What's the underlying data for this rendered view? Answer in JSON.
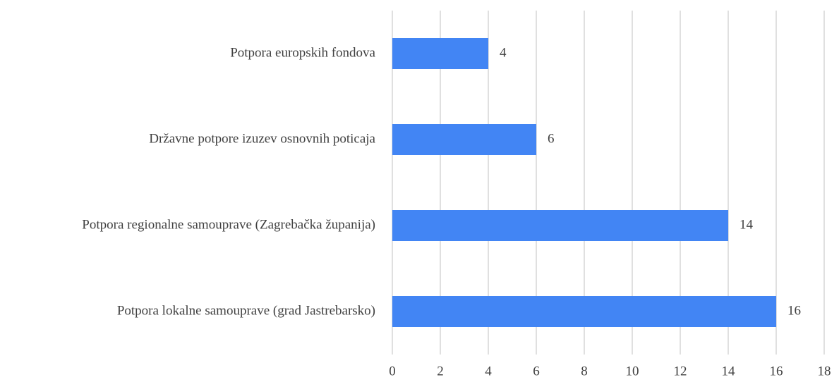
{
  "chart_data": {
    "type": "barh",
    "categories": [
      "Potpora europskih fondova",
      "Državne potpore izuzev osnovnih poticaja",
      "Potpora regionalne samouprave (Zagrebačka županija)",
      "Potpora lokalne samouprave (grad Jastrebarsko)"
    ],
    "values": [
      4,
      6,
      14,
      16
    ],
    "color": "#4285f4",
    "xlim": [
      0,
      18
    ],
    "xticks": [
      0,
      2,
      4,
      6,
      8,
      10,
      12,
      14,
      16,
      18
    ],
    "grid": true
  }
}
